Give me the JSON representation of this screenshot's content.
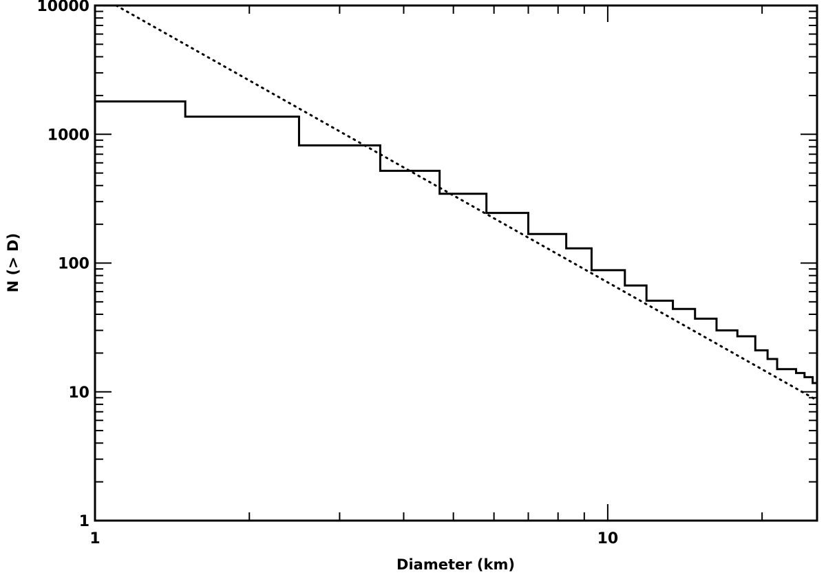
{
  "chart_data": {
    "type": "line",
    "title": "",
    "xlabel": "Diameter (km)",
    "ylabel": "N (> D)",
    "xscale": "log",
    "yscale": "log",
    "xlim": [
      1,
      25.6
    ],
    "ylim": [
      1,
      10000
    ],
    "grid": false,
    "x_tick_labels": [
      {
        "value": 1,
        "label": "1"
      },
      {
        "value": 10,
        "label": "10"
      }
    ],
    "y_tick_labels": [
      {
        "value": 1,
        "label": "1"
      },
      {
        "value": 10,
        "label": "10"
      },
      {
        "value": 100,
        "label": "100"
      },
      {
        "value": 1000,
        "label": "1000"
      },
      {
        "value": 10000,
        "label": "10000"
      }
    ],
    "series": [
      {
        "style": "solid-step",
        "color": "#000000",
        "points": [
          [
            1.0,
            1800
          ],
          [
            1.5,
            1370
          ],
          [
            2.5,
            820
          ],
          [
            3.6,
            520
          ],
          [
            4.7,
            345
          ],
          [
            5.8,
            245
          ],
          [
            7.0,
            168
          ],
          [
            8.3,
            130
          ],
          [
            9.3,
            88
          ],
          [
            10.8,
            67
          ],
          [
            11.9,
            51
          ],
          [
            13.4,
            44
          ],
          [
            14.8,
            37
          ],
          [
            16.3,
            30
          ],
          [
            17.9,
            27
          ],
          [
            19.4,
            21
          ],
          [
            20.5,
            18
          ],
          [
            21.4,
            15
          ],
          [
            23.3,
            14
          ],
          [
            24.2,
            13
          ],
          [
            25.1,
            11.7
          ],
          [
            25.6,
            10.7
          ],
          [
            25.6,
            9
          ]
        ]
      },
      {
        "style": "dotted",
        "color": "#000000",
        "points": [
          [
            1.1,
            10000
          ],
          [
            25.6,
            8.6
          ]
        ]
      }
    ]
  }
}
